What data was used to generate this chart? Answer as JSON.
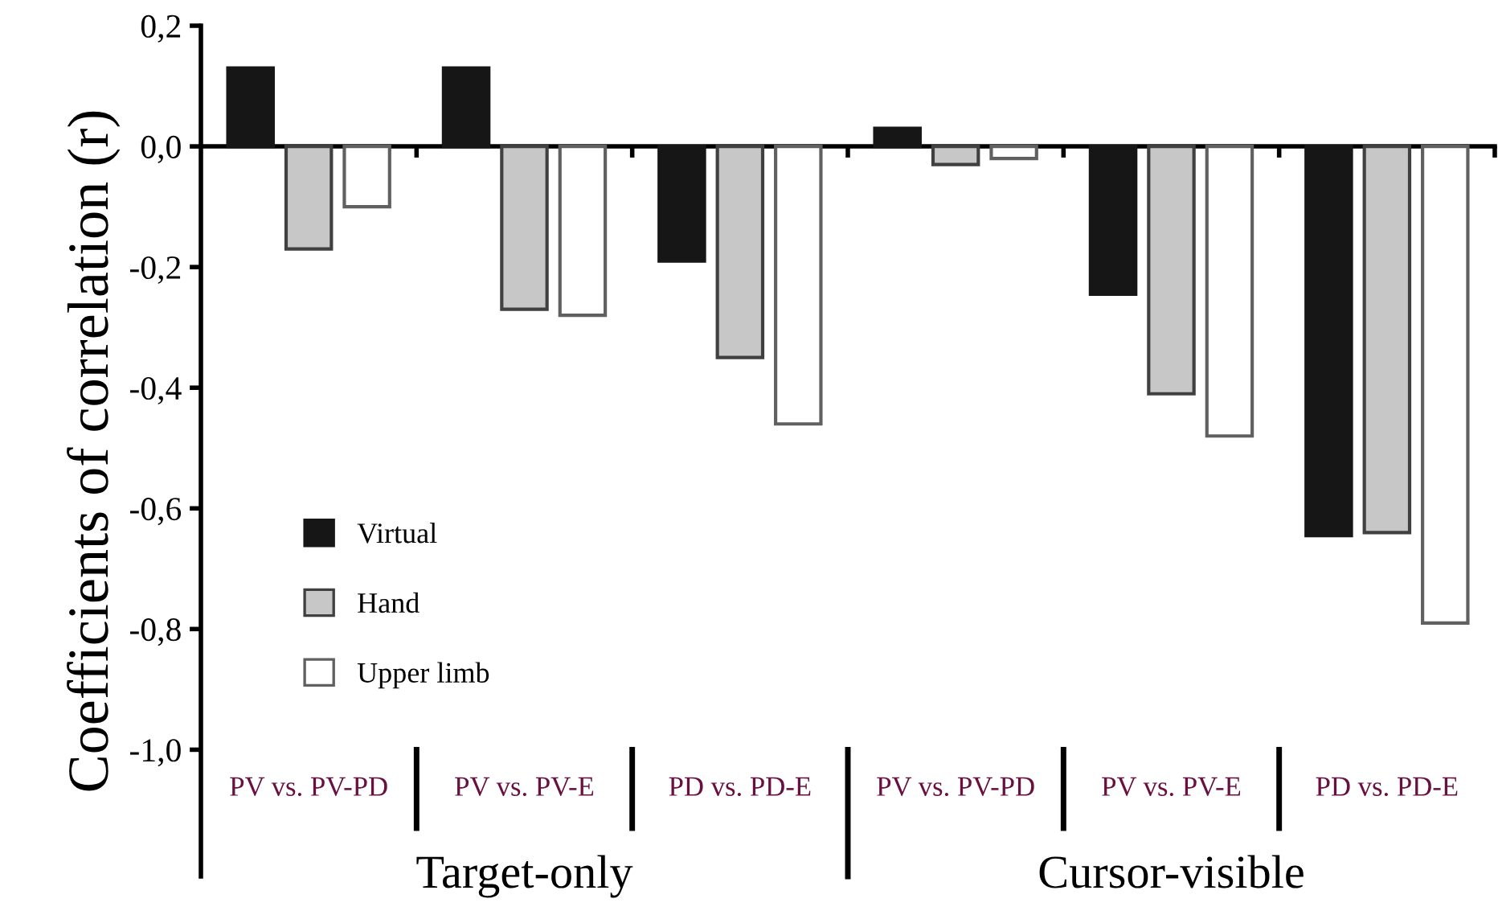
{
  "chart_data": {
    "type": "bar",
    "ylabel": "Coefficients of correlation (r)",
    "categories": [
      "PV vs. PV-PD",
      "PV vs. PV-E",
      "PD vs. PD-E",
      "PV vs. PV-PD",
      "PV vs. PV-E",
      "PD vs. PD-E"
    ],
    "series": [
      {
        "name": "Virtual",
        "color": "#161616",
        "values": [
          0.13,
          0.13,
          -0.19,
          0.03,
          -0.245,
          -0.645
        ]
      },
      {
        "name": "Hand",
        "color": "#c6c7c6",
        "values": [
          -0.17,
          -0.27,
          -0.35,
          -0.03,
          -0.41,
          -0.64
        ]
      },
      {
        "name": "Upper limb",
        "color": "#ffffff",
        "values": [
          -0.1,
          -0.28,
          -0.46,
          -0.02,
          -0.48,
          -0.79
        ]
      }
    ],
    "annotations": [
      "Target-only",
      "Cursor-visible"
    ],
    "ylim": [
      -1.21,
      0.2
    ],
    "yticks": [
      {
        "value": 0.2,
        "label": "0,2"
      },
      {
        "value": 0.0,
        "label": "0,0"
      },
      {
        "value": -0.2,
        "label": "-0,2"
      },
      {
        "value": -0.4,
        "label": "-0,4"
      },
      {
        "value": -0.6,
        "label": "-0,6"
      },
      {
        "value": -0.8,
        "label": "-0,8"
      },
      {
        "value": -1.0,
        "label": "-1,0"
      }
    ],
    "legend": "left"
  }
}
